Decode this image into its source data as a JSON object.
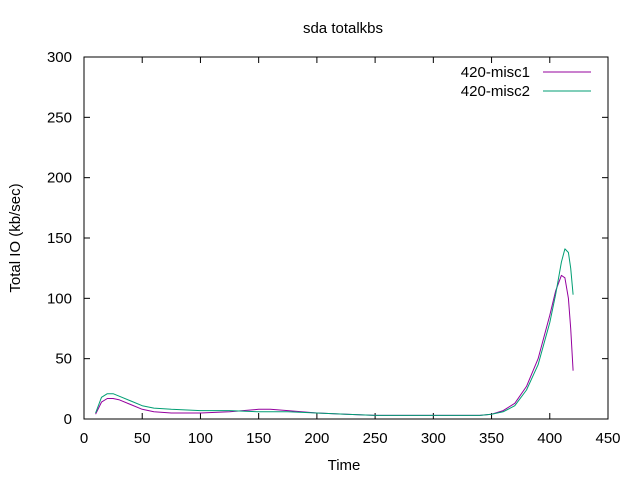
{
  "chart_data": {
    "type": "line",
    "title": "sda totalkbs",
    "xlabel": "Time",
    "ylabel": "Total IO (kb/sec)",
    "xlim": [
      0,
      450
    ],
    "ylim": [
      0,
      300
    ],
    "xticks": [
      0,
      50,
      100,
      150,
      200,
      250,
      300,
      350,
      400,
      450
    ],
    "yticks": [
      0,
      50,
      100,
      150,
      200,
      250,
      300
    ],
    "grid": false,
    "legend_position": "top-right",
    "series": [
      {
        "name": "420-misc1",
        "color": "#94009e",
        "x": [
          10,
          15,
          20,
          25,
          30,
          40,
          50,
          60,
          75,
          100,
          125,
          150,
          160,
          175,
          200,
          225,
          250,
          275,
          300,
          325,
          340,
          350,
          360,
          370,
          380,
          390,
          400,
          405,
          410,
          413,
          416,
          418,
          420
        ],
        "y": [
          4,
          14,
          17,
          17,
          16,
          12,
          8,
          6,
          5,
          5,
          6,
          8,
          8,
          7,
          5,
          4,
          3,
          3,
          3,
          3,
          3,
          4,
          7,
          13,
          27,
          50,
          86,
          106,
          119,
          117,
          100,
          75,
          40
        ]
      },
      {
        "name": "420-misc2",
        "color": "#009e73",
        "x": [
          10,
          15,
          20,
          25,
          30,
          40,
          50,
          60,
          75,
          100,
          125,
          150,
          160,
          175,
          200,
          225,
          250,
          275,
          300,
          325,
          340,
          350,
          360,
          370,
          380,
          390,
          400,
          405,
          410,
          413,
          416,
          418,
          420
        ],
        "y": [
          5,
          18,
          21,
          21,
          19,
          15,
          11,
          9,
          8,
          7,
          7,
          6,
          6,
          6,
          5,
          4,
          3,
          3,
          3,
          3,
          3,
          4,
          6,
          11,
          24,
          45,
          80,
          103,
          130,
          141,
          138,
          125,
          103
        ]
      }
    ]
  }
}
